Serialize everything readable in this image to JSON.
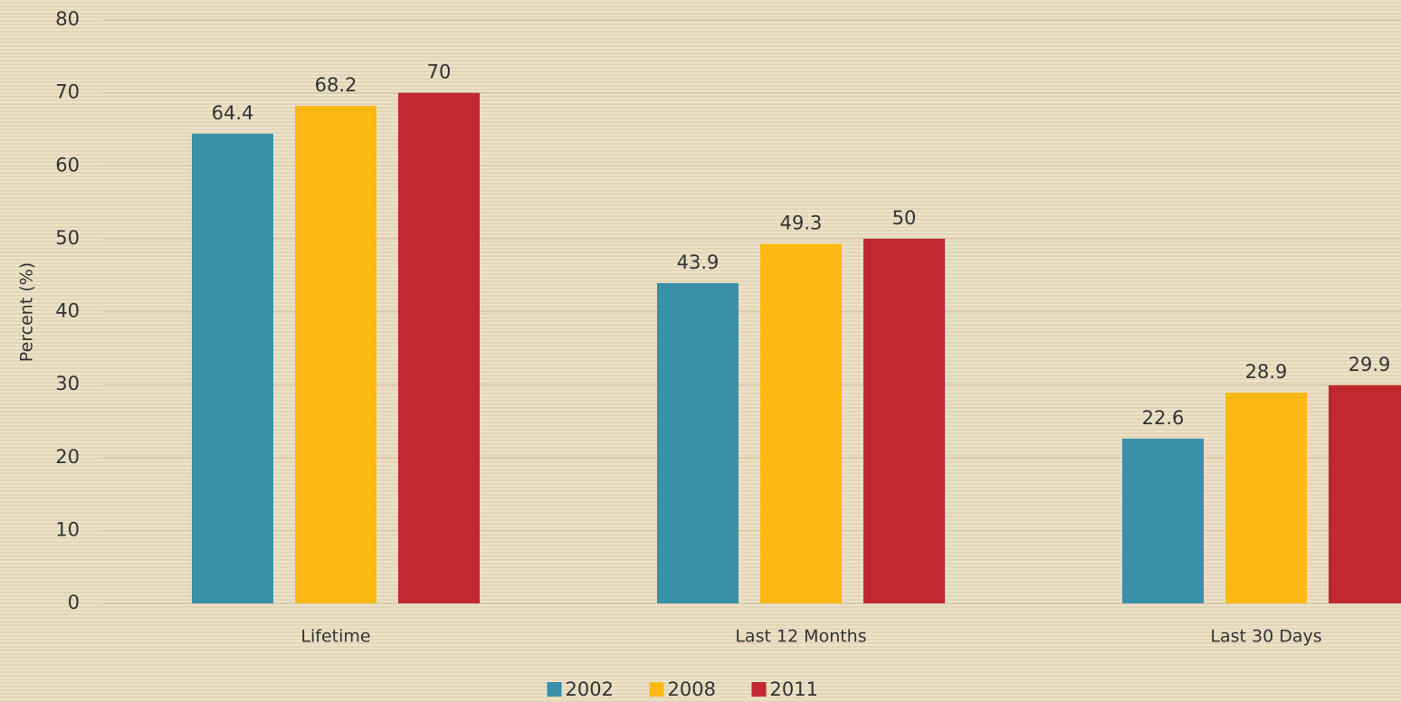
{
  "chart_data": {
    "type": "bar",
    "y_label": "Percent (%)",
    "categories": [
      "Lifetime",
      "Last 12 Months",
      "Last 30 Days"
    ],
    "series": [
      {
        "name": "2002",
        "color": "#3a90a8",
        "values": [
          64.4,
          43.9,
          22.6
        ]
      },
      {
        "name": "2008",
        "color": "#fdb813",
        "values": [
          68.2,
          49.3,
          28.9
        ]
      },
      {
        "name": "2011",
        "color": "#c1292e",
        "values": [
          70,
          50,
          29.9
        ]
      }
    ],
    "ylim": [
      0,
      80
    ],
    "yticks": [
      0,
      10,
      20,
      30,
      40,
      50,
      60,
      70,
      80
    ],
    "grid": true,
    "legend": "bottom"
  }
}
